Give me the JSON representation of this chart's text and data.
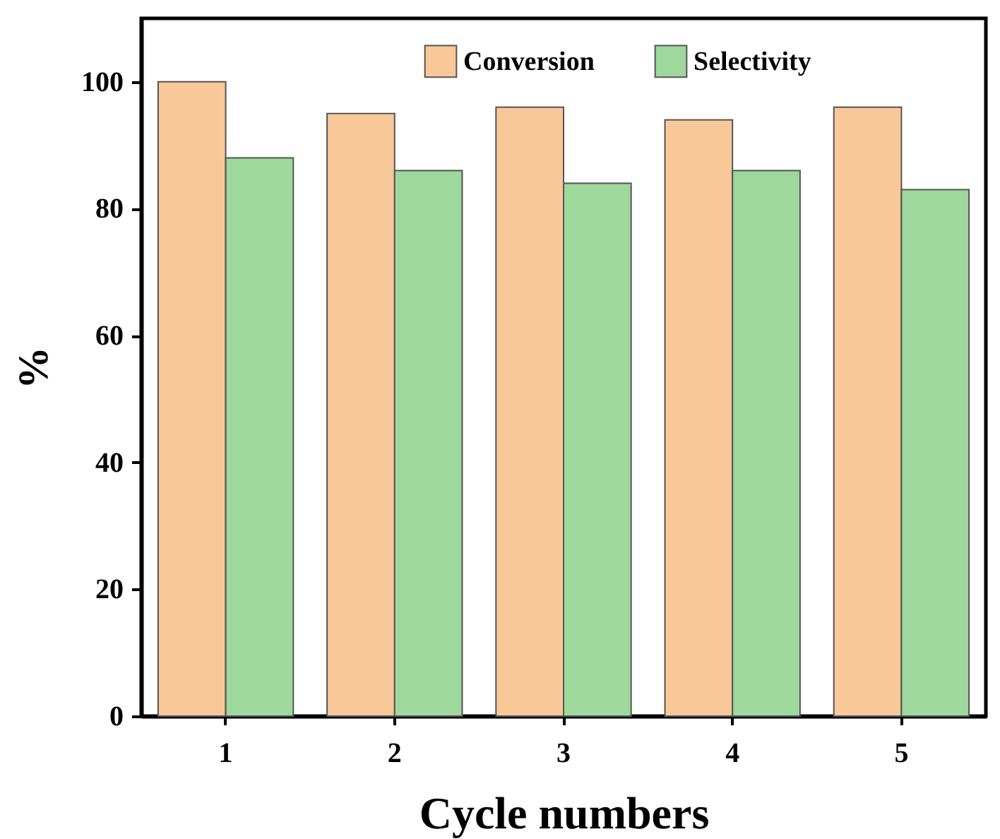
{
  "chart_data": {
    "type": "bar",
    "xlabel": "Cycle numbers",
    "ylabel": "%",
    "categories": [
      "1",
      "2",
      "3",
      "4",
      "5"
    ],
    "series": [
      {
        "name": "Conversion",
        "color": "#f9c899",
        "values": [
          100,
          95,
          96,
          94,
          96
        ]
      },
      {
        "name": "Selectivity",
        "color": "#9ed89c",
        "values": [
          88,
          86,
          84,
          86,
          83
        ]
      }
    ],
    "ylim": [
      0,
      110
    ],
    "yticks": [
      0,
      20,
      40,
      60,
      80,
      100
    ],
    "grid": false,
    "legend": "top"
  }
}
